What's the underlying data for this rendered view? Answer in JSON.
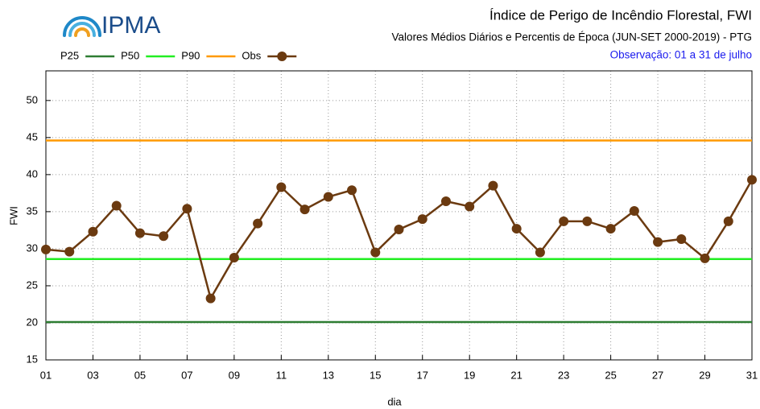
{
  "logo": "IPMA",
  "chart_data": {
    "type": "line",
    "title": "Índice de Perigo de Incêndio Florestal, FWI",
    "subtitle": "Valores Médios Diários e Percentis de Época (JUN-SET 2000-2019) - PTG",
    "note": "Observação: 01 a 31 de julho",
    "xlabel": "dia",
    "ylabel": "FWI",
    "x": [
      1,
      2,
      3,
      4,
      5,
      6,
      7,
      8,
      9,
      10,
      11,
      12,
      13,
      14,
      15,
      16,
      17,
      18,
      19,
      20,
      21,
      22,
      23,
      24,
      25,
      26,
      27,
      28,
      29,
      30,
      31
    ],
    "series": [
      {
        "name": "P25",
        "color": "#2e7d32",
        "values": [
          20.1,
          20.1,
          20.1,
          20.1,
          20.1,
          20.1,
          20.1,
          20.1,
          20.1,
          20.1,
          20.1,
          20.1,
          20.1,
          20.1,
          20.1,
          20.1,
          20.1,
          20.1,
          20.1,
          20.1,
          20.1,
          20.1,
          20.1,
          20.1,
          20.1,
          20.1,
          20.1,
          20.1,
          20.1,
          20.1,
          20.1
        ]
      },
      {
        "name": "P50",
        "color": "#22ee22",
        "values": [
          28.6,
          28.6,
          28.6,
          28.6,
          28.6,
          28.6,
          28.6,
          28.6,
          28.6,
          28.6,
          28.6,
          28.6,
          28.6,
          28.6,
          28.6,
          28.6,
          28.6,
          28.6,
          28.6,
          28.6,
          28.6,
          28.6,
          28.6,
          28.6,
          28.6,
          28.6,
          28.6,
          28.6,
          28.6,
          28.6,
          28.6
        ]
      },
      {
        "name": "P90",
        "color": "#ff9900",
        "values": [
          44.6,
          44.6,
          44.6,
          44.6,
          44.6,
          44.6,
          44.6,
          44.6,
          44.6,
          44.6,
          44.6,
          44.6,
          44.6,
          44.6,
          44.6,
          44.6,
          44.6,
          44.6,
          44.6,
          44.6,
          44.6,
          44.6,
          44.6,
          44.6,
          44.6,
          44.6,
          44.6,
          44.6,
          44.6,
          44.6,
          44.6
        ]
      },
      {
        "name": "Obs",
        "color": "#6b3a10",
        "markers": true,
        "values": [
          29.9,
          29.6,
          32.3,
          35.8,
          32.1,
          31.7,
          35.4,
          23.3,
          28.8,
          33.4,
          38.3,
          35.3,
          37.0,
          37.9,
          29.5,
          32.6,
          34.0,
          36.4,
          35.7,
          38.5,
          32.7,
          29.5,
          33.7,
          33.7,
          32.7,
          35.1,
          30.9,
          31.3,
          28.7,
          33.7,
          39.3
        ]
      }
    ],
    "xlim": [
      1,
      31
    ],
    "xticks": [
      {
        "value": 1,
        "label": "01"
      },
      {
        "value": 3,
        "label": "03"
      },
      {
        "value": 5,
        "label": "05"
      },
      {
        "value": 7,
        "label": "07"
      },
      {
        "value": 9,
        "label": "09"
      },
      {
        "value": 11,
        "label": "11"
      },
      {
        "value": 13,
        "label": "13"
      },
      {
        "value": 15,
        "label": "15"
      },
      {
        "value": 17,
        "label": "17"
      },
      {
        "value": 19,
        "label": "19"
      },
      {
        "value": 21,
        "label": "21"
      },
      {
        "value": 23,
        "label": "23"
      },
      {
        "value": 25,
        "label": "25"
      },
      {
        "value": 27,
        "label": "27"
      },
      {
        "value": 29,
        "label": "29"
      },
      {
        "value": 31,
        "label": "31"
      }
    ],
    "ylim": [
      15,
      54
    ],
    "yticks": [
      15,
      20,
      25,
      30,
      35,
      40,
      45,
      50
    ],
    "grid": true
  }
}
